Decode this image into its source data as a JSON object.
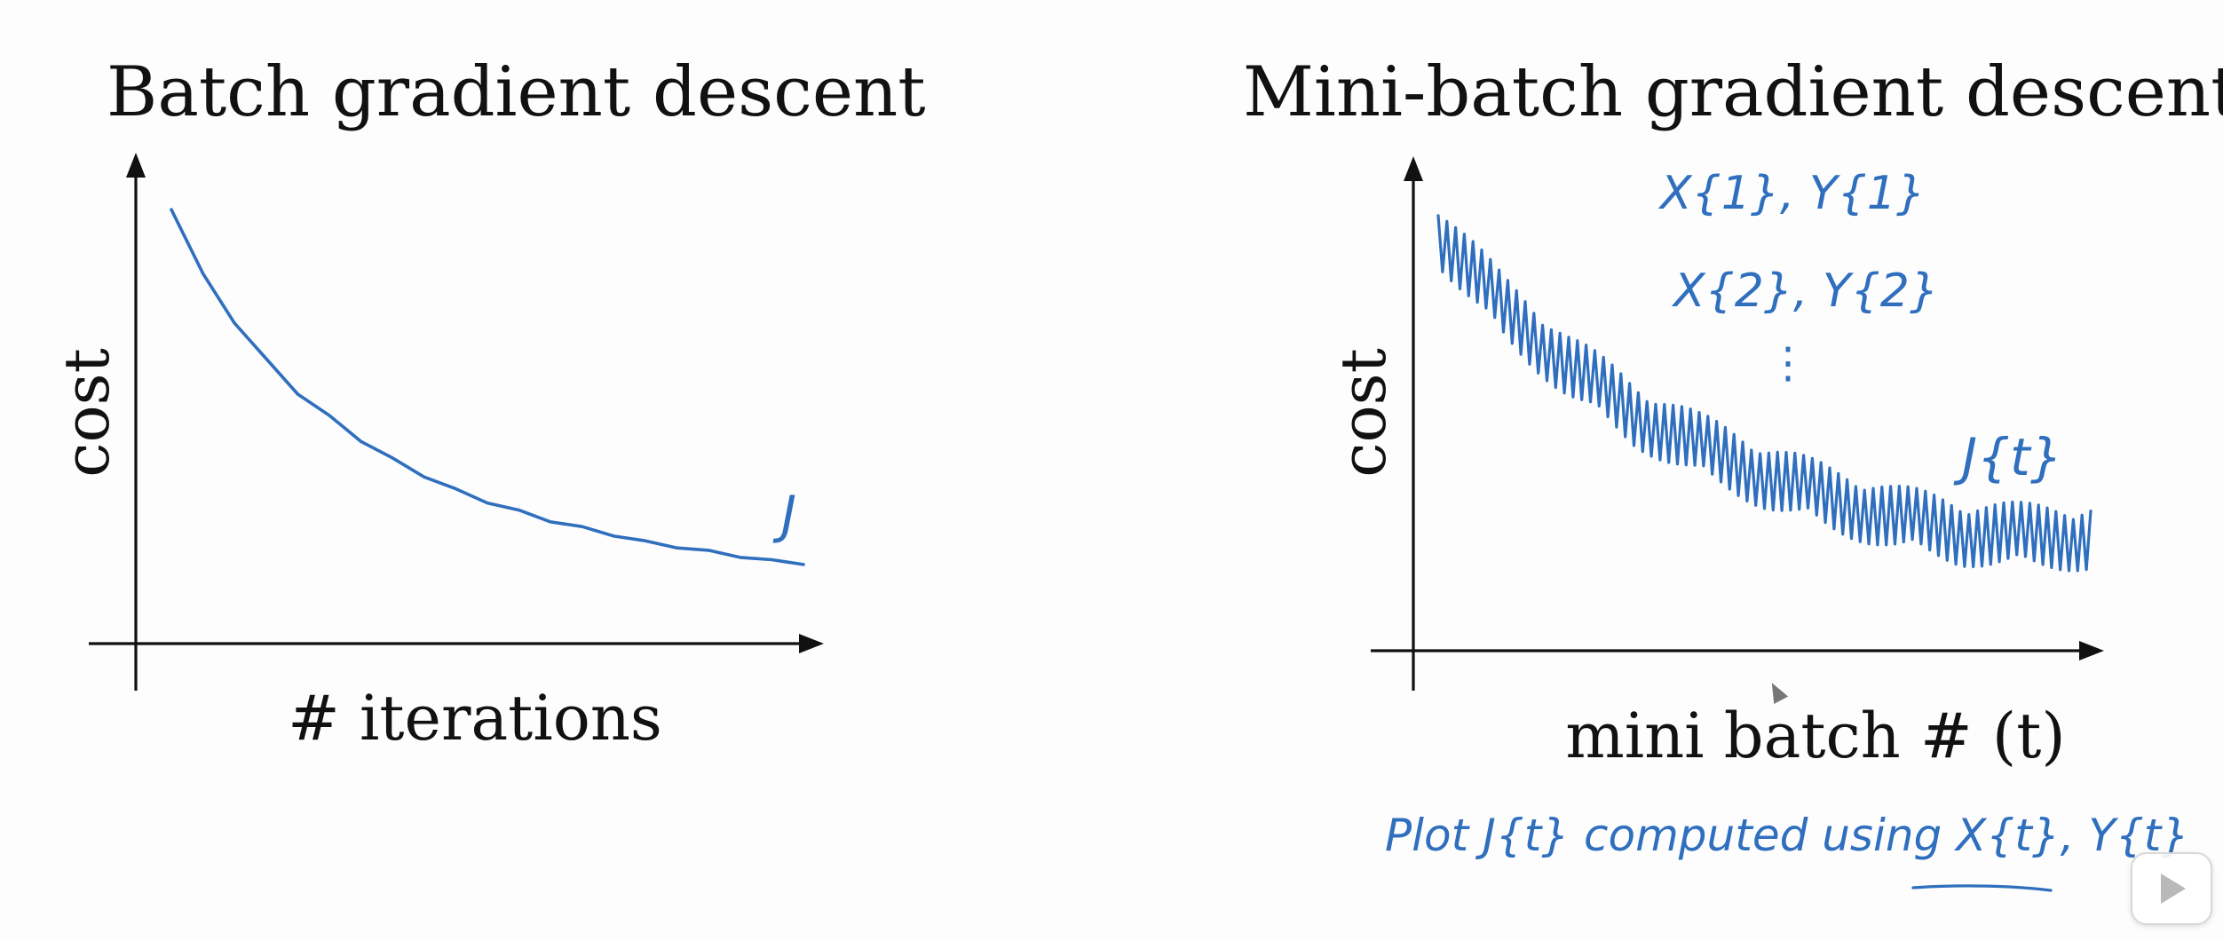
{
  "chart_data": [
    {
      "type": "line",
      "title": "Batch gradient descent",
      "xlabel": "# iterations",
      "ylabel": "cost",
      "series": [
        {
          "name": "J",
          "x": [
            0,
            5,
            10,
            15,
            20,
            25,
            30,
            35,
            40,
            45,
            50,
            55,
            60,
            65,
            70,
            75,
            80,
            85,
            90,
            95,
            100
          ],
          "y": [
            0.92,
            0.78,
            0.68,
            0.6,
            0.53,
            0.48,
            0.43,
            0.39,
            0.355,
            0.325,
            0.3,
            0.28,
            0.26,
            0.245,
            0.23,
            0.215,
            0.205,
            0.195,
            0.185,
            0.175,
            0.17
          ]
        }
      ],
      "annotation": "J",
      "ylim": [
        0,
        1
      ],
      "xlim": [
        0,
        100
      ]
    },
    {
      "type": "line",
      "title": "Mini-batch gradient descent",
      "xlabel": "mini batch # (t)",
      "ylabel": "cost",
      "series": [
        {
          "name": "J{t}",
          "x": [
            0,
            10,
            20,
            30,
            40,
            50,
            60,
            70,
            80,
            90,
            100
          ],
          "y": [
            0.88,
            0.72,
            0.6,
            0.5,
            0.43,
            0.37,
            0.32,
            0.28,
            0.25,
            0.24,
            0.24
          ],
          "noise_amplitude": 0.06
        }
      ],
      "annotations": [
        "X{1}, Y{1}",
        "X{2}, Y{2}",
        "⋮",
        "J{t}"
      ],
      "footnote": "Plot J{t} computed using X{t}, Y{t}",
      "ylim": [
        0,
        1
      ],
      "xlim": [
        0,
        100
      ]
    }
  ],
  "ui": {
    "play_button_icon": "play-icon"
  },
  "colors": {
    "ink": "#2f6fbe",
    "axis": "#111111",
    "background": "#fdfdfd"
  }
}
